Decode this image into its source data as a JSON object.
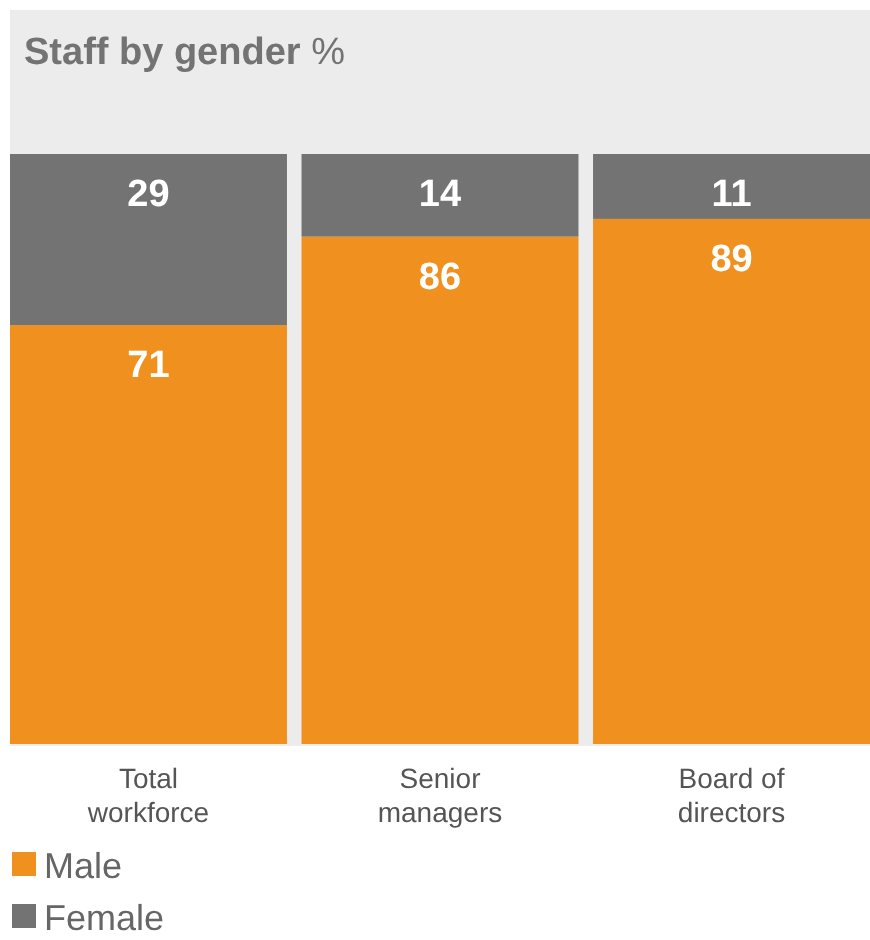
{
  "chart_data": {
    "type": "bar",
    "title": "Staff by gender",
    "subtitle": "%",
    "categories": [
      "Total workforce",
      "Senior managers",
      "Board of directors"
    ],
    "stacked": true,
    "ylim": [
      0,
      100
    ],
    "tick_labels": "x",
    "data_labels": true,
    "legend": "bottom left",
    "series": [
      {
        "name": "Male",
        "color": "#f0901e",
        "values": [
          71,
          86,
          89
        ]
      },
      {
        "name": "Female",
        "color": "#737373",
        "values": [
          29,
          14,
          11
        ]
      }
    ]
  }
}
